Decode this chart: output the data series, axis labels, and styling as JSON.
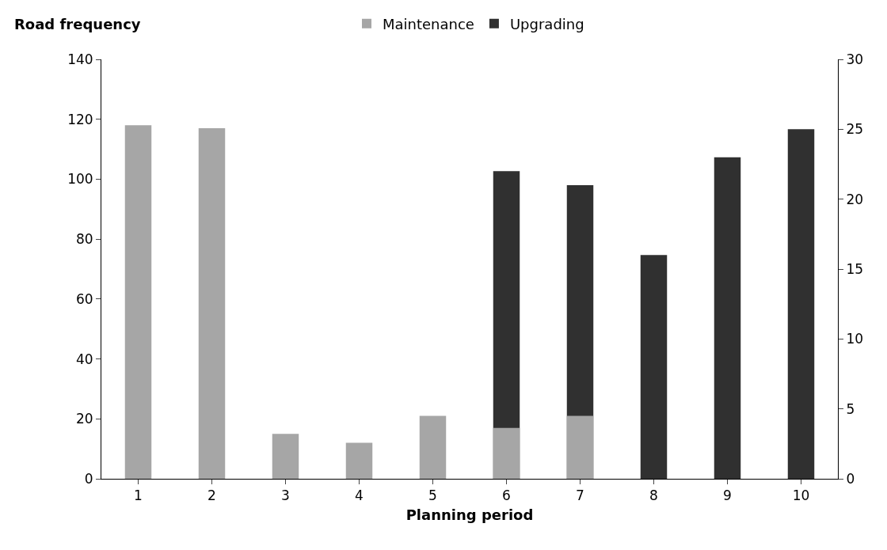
{
  "chart_data": {
    "type": "bar",
    "ylabel": "Road frequency",
    "xlabel": "Planning period",
    "categories": [
      "1",
      "2",
      "3",
      "4",
      "5",
      "6",
      "7",
      "8",
      "9",
      "10"
    ],
    "series": [
      {
        "name": "Maintenance",
        "color": "#a6a6a6",
        "values": [
          118,
          117,
          15,
          12,
          21,
          17,
          21,
          null,
          null,
          null
        ]
      },
      {
        "name": "Upgrading",
        "color": "#303030",
        "axis": "y2",
        "values": [
          null,
          null,
          null,
          null,
          null,
          22,
          21,
          16,
          23,
          25
        ]
      }
    ],
    "ylim": [
      0,
      140
    ],
    "yticks": [
      0,
      20,
      40,
      60,
      80,
      100,
      120,
      140
    ],
    "y2lim": [
      0,
      30
    ],
    "y2ticks": [
      0,
      5,
      10,
      15,
      20,
      25,
      30
    ],
    "legend": "top"
  }
}
